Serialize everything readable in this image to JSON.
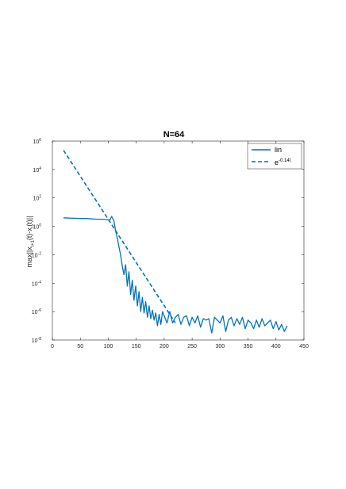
{
  "chart_data": {
    "type": "line",
    "title": "N=64",
    "xlabel": "",
    "ylabel_parts": {
      "main": "max||x",
      "sub1": "i+1",
      "mid": "(t)-x",
      "sub2": "i",
      "end": "(t)||"
    },
    "xlim": [
      0,
      450
    ],
    "ylim_exp": [
      -8,
      6
    ],
    "yscale": "log",
    "grid": false,
    "legend_placement": "top-right",
    "x_ticks": [
      "0",
      "50",
      "100",
      "150",
      "200",
      "250",
      "300",
      "350",
      "400",
      "450"
    ],
    "y_ticks": [
      {
        "base": "10",
        "exp": "-8"
      },
      {
        "base": "10",
        "exp": "-6"
      },
      {
        "base": "10",
        "exp": "-4"
      },
      {
        "base": "10",
        "exp": "-2"
      },
      {
        "base": "10",
        "exp": "0"
      },
      {
        "base": "10",
        "exp": "2"
      },
      {
        "base": "10",
        "exp": "4"
      },
      {
        "base": "10",
        "exp": "6"
      }
    ],
    "series": [
      {
        "name": "lin",
        "style": "solid",
        "color": "#0072BD",
        "x": [
          20,
          30,
          40,
          50,
          60,
          70,
          80,
          90,
          95,
          100,
          103,
          106,
          110,
          113,
          116,
          119,
          122,
          125,
          128,
          131,
          134,
          137,
          140,
          143,
          146,
          149,
          152,
          155,
          158,
          161,
          164,
          167,
          170,
          173,
          176,
          179,
          182,
          185,
          188,
          191,
          194,
          197,
          200,
          205,
          210,
          215,
          220,
          225,
          230,
          235,
          240,
          245,
          250,
          255,
          260,
          265,
          270,
          275,
          280,
          285,
          290,
          295,
          300,
          305,
          310,
          315,
          320,
          325,
          330,
          335,
          340,
          345,
          350,
          355,
          360,
          365,
          370,
          375,
          380,
          385,
          390,
          395,
          400,
          405,
          410,
          415,
          420
        ],
        "log10y": [
          0.6,
          0.58,
          0.57,
          0.55,
          0.55,
          0.52,
          0.5,
          0.5,
          0.48,
          0.46,
          0.45,
          0.7,
          0.4,
          -0.3,
          -0.8,
          -1.4,
          -2.0,
          -2.8,
          -3.4,
          -2.7,
          -4.2,
          -3.2,
          -4.8,
          -3.8,
          -5.2,
          -4.2,
          -5.6,
          -4.6,
          -6.0,
          -5.0,
          -6.1,
          -5.3,
          -6.4,
          -5.6,
          -6.5,
          -5.9,
          -6.6,
          -6.1,
          -7.0,
          -6.2,
          -6.9,
          -6.0,
          -6.3,
          -6.8,
          -6.0,
          -6.8,
          -6.4,
          -6.2,
          -6.9,
          -6.4,
          -6.3,
          -7.0,
          -6.4,
          -6.8,
          -6.3,
          -7.1,
          -6.5,
          -6.6,
          -6.5,
          -7.5,
          -6.4,
          -6.6,
          -6.8,
          -6.3,
          -7.4,
          -6.6,
          -6.4,
          -7.0,
          -6.5,
          -6.9,
          -6.4,
          -7.2,
          -6.6,
          -6.8,
          -7.2,
          -6.6,
          -7.1,
          -6.5,
          -7.0,
          -6.8,
          -6.6,
          -7.2,
          -6.7,
          -7.3,
          -6.9,
          -7.4,
          -7.0
        ]
      },
      {
        "name": "e^{-0.14t}",
        "legend_base": "e",
        "legend_exp": "-0.14t",
        "style": "dashed",
        "color": "#0072BD",
        "x": [
          20,
          220
        ],
        "log10y": [
          5.35,
          -6.8
        ]
      }
    ]
  }
}
